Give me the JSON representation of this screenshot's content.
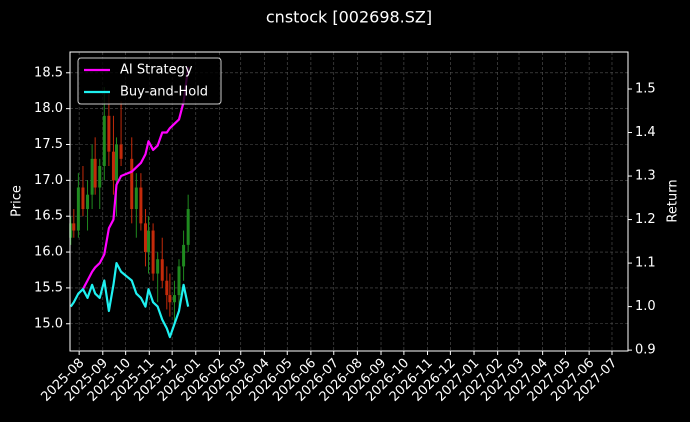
{
  "chart_data": {
    "type": "candlestick",
    "title": "cnstock [002698.SZ]",
    "ylabel": "Price",
    "y2label": "Return",
    "x": [
      "2025-07-21",
      "2025-07-25",
      "2025-07-31",
      "2025-08-06",
      "2025-08-12",
      "2025-08-18",
      "2025-08-22",
      "2025-08-28",
      "2025-09-03",
      "2025-09-09",
      "2025-09-15",
      "2025-09-19",
      "2025-09-25",
      "2025-10-09",
      "2025-10-15",
      "2025-10-21",
      "2025-10-27",
      "2025-10-31",
      "2025-11-06",
      "2025-11-12",
      "2025-11-18",
      "2025-11-24",
      "2025-11-28",
      "2025-12-04",
      "2025-12-10",
      "2025-12-16",
      "2025-12-22"
    ],
    "open": [
      16.2,
      16.4,
      16.3,
      16.9,
      16.6,
      16.8,
      17.3,
      16.9,
      17.2,
      17.9,
      17.4,
      17.0,
      17.5,
      17.3,
      16.6,
      16.9,
      16.4,
      16.0,
      16.3,
      15.7,
      15.9,
      15.6,
      15.4,
      15.3,
      15.4,
      15.8,
      16.1
    ],
    "high": [
      16.5,
      16.6,
      17.1,
      17.2,
      17.0,
      17.5,
      17.6,
      17.3,
      18.3,
      18.2,
      17.9,
      17.6,
      18.1,
      17.6,
      17.1,
      17.1,
      16.6,
      16.5,
      16.4,
      16.0,
      16.2,
      15.8,
      15.7,
      15.6,
      15.9,
      16.3,
      16.8
    ],
    "low": [
      16.1,
      16.2,
      16.2,
      16.5,
      16.3,
      16.6,
      16.8,
      16.6,
      17.0,
      17.2,
      16.8,
      16.5,
      17.2,
      16.4,
      16.2,
      16.3,
      15.8,
      15.7,
      15.6,
      15.3,
      15.5,
      15.2,
      15.1,
      15.0,
      15.2,
      15.6,
      16.0
    ],
    "close": [
      16.4,
      16.3,
      16.9,
      16.6,
      16.8,
      17.3,
      16.9,
      17.2,
      17.9,
      17.4,
      17.0,
      17.5,
      17.3,
      16.6,
      16.9,
      16.4,
      16.0,
      16.3,
      15.7,
      15.9,
      15.6,
      15.4,
      15.3,
      15.4,
      15.8,
      16.1,
      16.6
    ],
    "up_color": "#1f8a1f",
    "down_color": "#c42a0a",
    "series": [
      {
        "name": "AI Strategy",
        "color": "#ff00ff",
        "axis": "y2",
        "values": [
          null,
          null,
          null,
          1.04,
          1.06,
          1.08,
          1.09,
          1.1,
          1.12,
          1.18,
          1.2,
          1.28,
          1.3,
          1.31,
          1.32,
          1.33,
          1.35,
          1.38,
          1.36,
          1.37,
          1.4,
          1.4,
          1.41,
          1.42,
          1.43,
          1.47,
          1.55
        ]
      },
      {
        "name": "Buy-and-Hold",
        "color": "#1ef0f0",
        "axis": "y2",
        "values": [
          1.0,
          1.01,
          1.03,
          1.04,
          1.02,
          1.05,
          1.03,
          1.02,
          1.06,
          0.99,
          1.05,
          1.1,
          1.08,
          1.06,
          1.03,
          1.02,
          1.0,
          1.04,
          1.01,
          1.0,
          0.97,
          0.95,
          0.93,
          0.96,
          0.99,
          1.05,
          1.0
        ]
      }
    ],
    "xlim": [
      "2025-07-20",
      "2027-07-22"
    ],
    "xticks": [
      {
        "value": "2025-08-01",
        "label": "2025-08"
      },
      {
        "value": "2025-09-01",
        "label": "2025-09"
      },
      {
        "value": "2025-10-01",
        "label": "2025-10"
      },
      {
        "value": "2025-11-01",
        "label": "2025-11"
      },
      {
        "value": "2025-12-01",
        "label": "2025-12"
      },
      {
        "value": "2026-01-01",
        "label": "2026-01"
      },
      {
        "value": "2026-02-01",
        "label": "2026-02"
      },
      {
        "value": "2026-03-01",
        "label": "2026-03"
      },
      {
        "value": "2026-04-01",
        "label": "2026-04"
      },
      {
        "value": "2026-05-01",
        "label": "2026-05"
      },
      {
        "value": "2026-06-01",
        "label": "2026-06"
      },
      {
        "value": "2026-07-01",
        "label": "2026-07"
      },
      {
        "value": "2026-08-01",
        "label": "2026-08"
      },
      {
        "value": "2026-09-01",
        "label": "2026-09"
      },
      {
        "value": "2026-10-01",
        "label": "2026-10"
      },
      {
        "value": "2026-11-01",
        "label": "2026-11"
      },
      {
        "value": "2026-12-01",
        "label": "2026-12"
      },
      {
        "value": "2027-01-01",
        "label": "2027-01"
      },
      {
        "value": "2027-02-01",
        "label": "2027-02"
      },
      {
        "value": "2027-03-01",
        "label": "2027-03"
      },
      {
        "value": "2027-04-01",
        "label": "2027-04"
      },
      {
        "value": "2027-05-01",
        "label": "2027-05"
      },
      {
        "value": "2027-06-01",
        "label": "2027-06"
      },
      {
        "value": "2027-07-01",
        "label": "2027-07"
      }
    ],
    "ylim": [
      14.62,
      18.79
    ],
    "yticks": [
      {
        "value": 15.0,
        "label": "15.0"
      },
      {
        "value": 15.5,
        "label": "15.5"
      },
      {
        "value": 16.0,
        "label": "16.0"
      },
      {
        "value": 16.5,
        "label": "16.5"
      },
      {
        "value": 17.0,
        "label": "17.0"
      },
      {
        "value": 17.5,
        "label": "17.5"
      },
      {
        "value": 18.0,
        "label": "18.0"
      },
      {
        "value": 18.5,
        "label": "18.5"
      }
    ],
    "y2lim": [
      0.898,
      1.585
    ],
    "y2ticks": [
      {
        "value": 0.9,
        "label": "0.9"
      },
      {
        "value": 1.0,
        "label": "1.0"
      },
      {
        "value": 1.1,
        "label": "1.1"
      },
      {
        "value": 1.2,
        "label": "1.2"
      },
      {
        "value": 1.3,
        "label": "1.3"
      },
      {
        "value": 1.4,
        "label": "1.4"
      },
      {
        "value": 1.5,
        "label": "1.5"
      }
    ],
    "grid": true,
    "legend": "upper left"
  }
}
